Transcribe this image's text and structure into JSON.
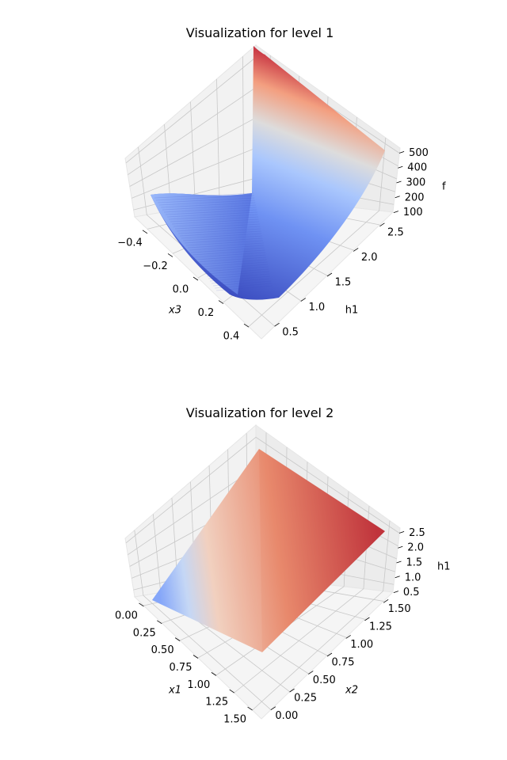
{
  "chart_data": [
    {
      "type": "surface3d",
      "title": "Visualization for level 1",
      "colormap": "coolwarm",
      "axes": {
        "x": {
          "label": "x3",
          "label_style": "italic",
          "ticks": [
            "−0.4",
            "−0.2",
            "0.0",
            "0.2",
            "0.4"
          ],
          "range": [
            -0.45,
            0.45
          ]
        },
        "y": {
          "label": "h1",
          "ticks": [
            "0.5",
            "1.0",
            "1.5",
            "2.0",
            "2.5"
          ],
          "range": [
            0.3,
            2.7
          ]
        },
        "z": {
          "label": "f",
          "ticks": [
            "100",
            "200",
            "300",
            "400",
            "500"
          ],
          "range": [
            0,
            560
          ]
        }
      },
      "surface": {
        "description": "noisy parabolic valley in x3, increasing with h1",
        "x": [
          -0.4,
          -0.2,
          0.0,
          0.2,
          0.4
        ],
        "y": [
          0.5,
          1.0,
          1.5,
          2.0,
          2.5
        ],
        "z_approx": "f ≈ 10 + 90·h1 + 1000·x3²",
        "z_range": [
          10,
          560
        ]
      },
      "grid": true
    },
    {
      "type": "surface3d",
      "title": "Visualization for level 2",
      "colormap": "coolwarm",
      "axes": {
        "x": {
          "label": "x1",
          "label_style": "italic",
          "ticks": [
            "0.00",
            "0.25",
            "0.50",
            "0.75",
            "1.00",
            "1.25",
            "1.50"
          ],
          "range": [
            -0.1,
            1.6
          ]
        },
        "y": {
          "label": "x2",
          "label_style": "italic",
          "ticks": [
            "0.00",
            "0.25",
            "0.50",
            "0.75",
            "1.00",
            "1.25",
            "1.50"
          ],
          "range": [
            -0.1,
            1.6
          ]
        },
        "z": {
          "label": "h1",
          "ticks": [
            "0.5",
            "1.0",
            "1.5",
            "2.0",
            "2.5"
          ],
          "range": [
            0.2,
            2.8
          ]
        }
      },
      "surface": {
        "description": "planar surface rising along x1 and x2",
        "x": [
          0,
          1.5
        ],
        "y": [
          0,
          1.5
        ],
        "z_approx": "h1 ≈ 0.5 + 0.7·x1 + 0.7·x2",
        "z_range": [
          0.5,
          2.6
        ]
      },
      "grid": true
    }
  ]
}
